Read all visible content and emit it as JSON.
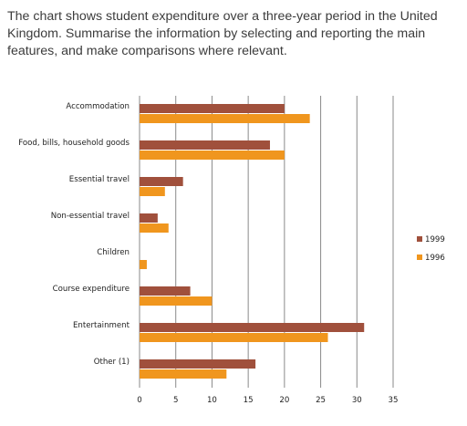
{
  "prompt": {
    "text": "The chart shows student expenditure over a three-year period in the United Kingdom. Summarise the information by selecting and reporting the main features, and make comparisons where relevant."
  },
  "chart_data": {
    "type": "bar",
    "orientation": "horizontal",
    "categories": [
      "Accommodation",
      "Food, bills, household goods",
      "Essential travel",
      "Non-essential travel",
      "Children",
      "Course expenditure",
      "Entertainment",
      "Other (1)"
    ],
    "series": [
      {
        "name": "1999",
        "color": "#a0503c",
        "values": [
          20,
          18,
          6,
          2.5,
          0,
          7,
          31,
          16
        ]
      },
      {
        "name": "1996",
        "color": "#f0961e",
        "values": [
          23.5,
          20,
          3.5,
          4,
          1,
          10,
          26,
          12
        ]
      }
    ],
    "xlim": [
      0,
      35
    ],
    "xticks": [
      "0",
      "5",
      "10",
      "15",
      "20",
      "25",
      "30",
      "35"
    ],
    "grid": "vertical",
    "legend_placement": "right"
  }
}
